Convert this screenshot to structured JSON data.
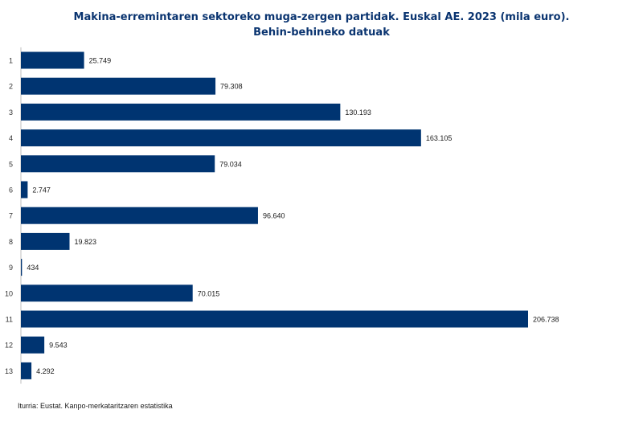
{
  "title_line1": "Makina-erremintaren sektoreko muga-zergen partidak. Euskal AE. 2023 (mila euro).",
  "title_line2": "Behin-behineko datuak",
  "source": "Iturria: Eustat. Kanpo-merkataritzaren estatistika",
  "colors": {
    "bar": "#003471",
    "axis": "#bfbfbf",
    "title": "#0a3470"
  },
  "chart_data": {
    "type": "bar",
    "orientation": "horizontal",
    "title": "Makina-erremintaren sektoreko muga-zergen partidak. Euskal AE. 2023 (mila euro). Behin-behineko datuak",
    "xlabel": "",
    "ylabel": "",
    "categories": [
      "1",
      "2",
      "3",
      "4",
      "5",
      "6",
      "7",
      "8",
      "9",
      "10",
      "11",
      "12",
      "13"
    ],
    "values": [
      25749,
      79308,
      130193,
      163105,
      79034,
      2747,
      96640,
      19823,
      434,
      70015,
      206738,
      9543,
      4292
    ],
    "value_labels": [
      "25.749",
      "79.308",
      "130.193",
      "163.105",
      "79.034",
      "2.747",
      "96.640",
      "19.823",
      "434",
      "70.015",
      "206.738",
      "9.543",
      "4.292"
    ],
    "xlim": [
      0,
      206738
    ],
    "grid": false,
    "legend": "none"
  }
}
